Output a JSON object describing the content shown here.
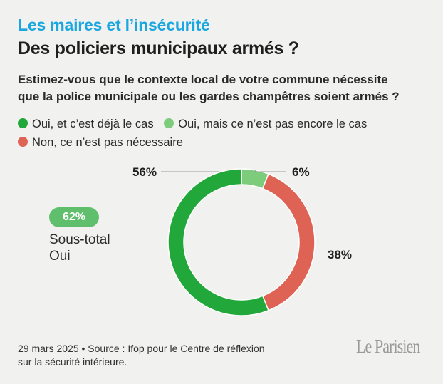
{
  "kicker": "Les maires et l’insécurité",
  "title": "Des policiers municipaux armés ?",
  "question_lines": [
    "Estimez-vous que le contexte local de votre commune nécessite",
    "que la police municipale ou les gardes champêtres soient armés ?"
  ],
  "legend": [
    {
      "label": "Oui, et c’est déjà le cas",
      "color": "#22a83a"
    },
    {
      "label": "Oui, mais ce n’est pas encore le cas",
      "color": "#7ccc7b"
    },
    {
      "label": "Non, ce n’est pas nécessaire",
      "color": "#de6355"
    }
  ],
  "subtotal": {
    "value": "62%",
    "label_lines": [
      "Sous-total",
      "Oui"
    ],
    "color": "#5fbf6c"
  },
  "chart_data": {
    "type": "pie",
    "donut": true,
    "slices": [
      {
        "label": "Oui, et c’est déjà le cas",
        "value": 56,
        "display": "56%",
        "color": "#22a83a"
      },
      {
        "label": "Oui, mais ce n’est pas encore le cas",
        "value": 6,
        "display": "6%",
        "color": "#7ccc7b"
      },
      {
        "label": "Non, ce n’est pas nécessaire",
        "value": 38,
        "display": "38%",
        "color": "#de6355"
      }
    ]
  },
  "source_lines": [
    "29 mars 2025 • Source : Ifop pour le Centre de réflexion",
    "sur la sécurité intérieure."
  ],
  "logo": "Le Parisien"
}
